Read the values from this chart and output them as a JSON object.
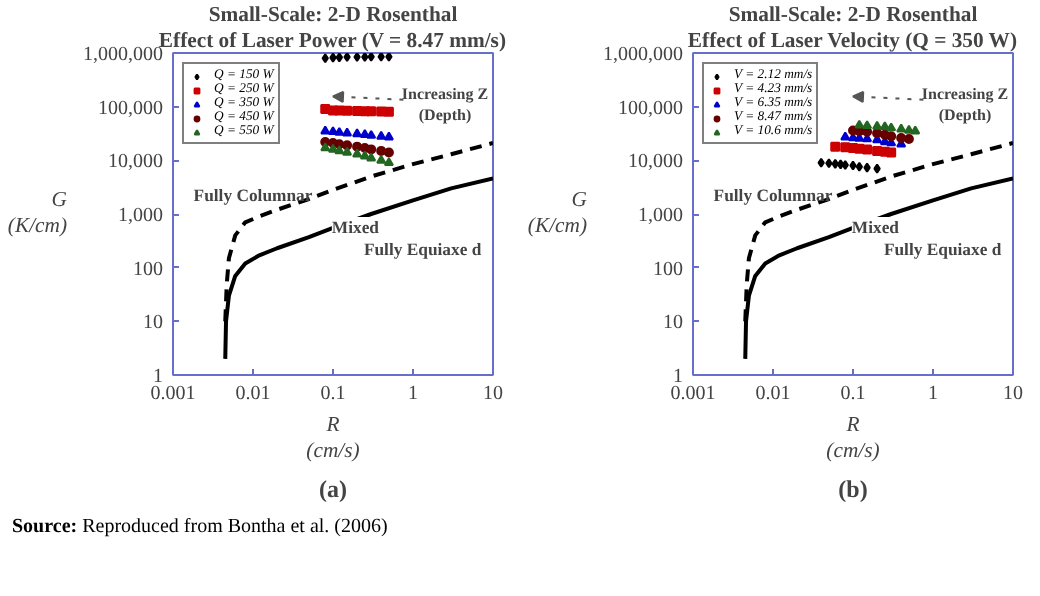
{
  "chart_data": [
    {
      "type": "scatter",
      "title": "Small-Scale: 2-D Rosenthal",
      "subtitle": "Effect of Laser Power (V = 8.47 mm/s)",
      "xlabel": "R (cm/s)",
      "ylabel": "G (K/cm)",
      "log": "xy",
      "grid": false,
      "legend": "top left",
      "xlim": [
        0.001,
        10
      ],
      "ylim": [
        1,
        1000000
      ],
      "xticks": [
        0.001,
        0.01,
        0.1,
        1,
        10
      ],
      "yticks": [
        1,
        10,
        100,
        {
          "value": 1000,
          "label": "1,000"
        },
        {
          "value": 10000,
          "label": "10,000"
        },
        {
          "value": 100000,
          "label": "100,000"
        },
        {
          "value": 1000000,
          "label": "1,000,000"
        }
      ],
      "series": [
        {
          "type": "line",
          "color": "#000000",
          "line_style": "dashed",
          "x": [
            0.0045,
            0.0047,
            0.005,
            0.006,
            0.008,
            0.012,
            0.02,
            0.05,
            0.1,
            0.3,
            1,
            3,
            10
          ],
          "values": [
            10,
            50,
            150,
            400,
            700,
            900,
            1200,
            1900,
            2800,
            5000,
            8500,
            13000,
            21000
          ]
        },
        {
          "type": "line",
          "color": "#000000",
          "line_style": "solid",
          "x": [
            0.0045,
            0.0046,
            0.005,
            0.006,
            0.008,
            0.012,
            0.02,
            0.05,
            0.1,
            0.3,
            1,
            3,
            10
          ],
          "values": [
            2,
            10,
            30,
            70,
            120,
            170,
            230,
            370,
            550,
            1000,
            1800,
            3000,
            4600
          ]
        },
        {
          "name": "Q = 150 W",
          "color": "#000000",
          "marker": "diamond",
          "x": [
            0.08,
            0.1,
            0.12,
            0.15,
            0.2,
            0.25,
            0.3,
            0.4,
            0.5
          ],
          "values": [
            800000,
            820000,
            830000,
            840000,
            840000,
            840000,
            850000,
            850000,
            850000
          ]
        },
        {
          "name": "Q = 250 W",
          "color": "#cc0000",
          "marker": "square",
          "x": [
            0.08,
            0.1,
            0.12,
            0.15,
            0.2,
            0.25,
            0.3,
            0.4,
            0.5
          ],
          "values": [
            90000,
            85000,
            85000,
            84000,
            83000,
            82000,
            82000,
            81000,
            80000
          ]
        },
        {
          "name": "Q = 350 W",
          "color": "#0000cc",
          "marker": "triangle",
          "x": [
            0.08,
            0.1,
            0.12,
            0.15,
            0.2,
            0.25,
            0.3,
            0.4,
            0.5
          ],
          "values": [
            35000,
            34000,
            33000,
            32000,
            31000,
            30000,
            29000,
            28000,
            27000
          ]
        },
        {
          "name": "Q = 450 W",
          "color": "#660000",
          "marker": "circle",
          "x": [
            0.08,
            0.1,
            0.12,
            0.15,
            0.2,
            0.25,
            0.3,
            0.4,
            0.5
          ],
          "values": [
            22000,
            21000,
            20000,
            19000,
            18000,
            17000,
            16000,
            15000,
            14000
          ]
        },
        {
          "name": "Q = 550 W",
          "color": "#226622",
          "marker": "triangle",
          "x": [
            0.08,
            0.1,
            0.12,
            0.15,
            0.2,
            0.25,
            0.3,
            0.4,
            0.5
          ],
          "values": [
            17000,
            16000,
            15000,
            14000,
            13000,
            12000,
            11000,
            10000,
            9000
          ]
        }
      ],
      "annotations": [
        "(a)",
        "Fully Columnar",
        "Mixed",
        "Fully Equiaxe d",
        "Increasing Z (Depth)",
        "Source: Reproduced from Bontha et al. (2006)"
      ]
    },
    {
      "type": "scatter",
      "title": "Small-Scale: 2-D Rosenthal",
      "subtitle": "Effect of Laser Velocity (Q = 350 W)",
      "xlabel": "R (cm/s)",
      "ylabel": "G (K/cm)",
      "log": "xy",
      "grid": false,
      "legend": "top left",
      "xlim": [
        0.001,
        10
      ],
      "ylim": [
        1,
        1000000
      ],
      "xticks": [
        0.001,
        0.01,
        0.1,
        1,
        10
      ],
      "yticks": [
        1,
        10,
        100,
        {
          "value": 1000,
          "label": "1,000"
        },
        {
          "value": 10000,
          "label": "10,000"
        },
        {
          "value": 100000,
          "label": "100,000"
        },
        {
          "value": 1000000,
          "label": "1,000,000"
        }
      ],
      "series": [
        {
          "type": "line",
          "color": "#000000",
          "line_style": "dashed",
          "x": [
            0.0045,
            0.0047,
            0.005,
            0.006,
            0.008,
            0.012,
            0.02,
            0.05,
            0.1,
            0.3,
            1,
            3,
            10
          ],
          "values": [
            10,
            50,
            150,
            400,
            700,
            900,
            1200,
            1900,
            2800,
            5000,
            8500,
            13000,
            21000
          ]
        },
        {
          "type": "line",
          "color": "#000000",
          "line_style": "solid",
          "x": [
            0.0045,
            0.0046,
            0.005,
            0.006,
            0.008,
            0.012,
            0.02,
            0.05,
            0.1,
            0.3,
            1,
            3,
            10
          ],
          "values": [
            2,
            10,
            30,
            70,
            120,
            170,
            230,
            370,
            550,
            1000,
            1800,
            3000,
            4600
          ]
        },
        {
          "name": "V = 2.12 mm/s",
          "color": "#000000",
          "marker": "diamond",
          "x": [
            0.04,
            0.05,
            0.06,
            0.07,
            0.08,
            0.1,
            0.12,
            0.15,
            0.2
          ],
          "values": [
            9000,
            8800,
            8600,
            8400,
            8200,
            8000,
            7600,
            7300,
            7000
          ]
        },
        {
          "name": "V = 4.23 mm/s",
          "color": "#cc0000",
          "marker": "square",
          "x": [
            0.06,
            0.08,
            0.1,
            0.12,
            0.15,
            0.2,
            0.25,
            0.3
          ],
          "values": [
            18000,
            17500,
            17000,
            16500,
            16000,
            15000,
            14500,
            14000
          ]
        },
        {
          "name": "V = 6.35 mm/s",
          "color": "#0000cc",
          "marker": "triangle",
          "x": [
            0.08,
            0.1,
            0.12,
            0.15,
            0.2,
            0.25,
            0.3,
            0.4
          ],
          "values": [
            27000,
            26000,
            25500,
            25000,
            24000,
            22000,
            21000,
            20000
          ]
        },
        {
          "name": "V = 8.47 mm/s",
          "color": "#660000",
          "marker": "circle",
          "x": [
            0.1,
            0.12,
            0.15,
            0.2,
            0.25,
            0.3,
            0.4,
            0.5
          ],
          "values": [
            36000,
            35000,
            34000,
            32000,
            30000,
            28000,
            26000,
            25000
          ]
        },
        {
          "name": "V = 10.6 mm/s",
          "color": "#226622",
          "marker": "triangle",
          "x": [
            0.12,
            0.15,
            0.2,
            0.25,
            0.3,
            0.4,
            0.5,
            0.6
          ],
          "values": [
            45000,
            44000,
            43000,
            42000,
            40000,
            38000,
            36000,
            35000
          ]
        }
      ],
      "annotations": [
        "(b)",
        "Fully Columnar",
        "Mixed",
        "Fully Equiaxe d",
        "Increasing Z (Depth)"
      ]
    }
  ]
}
